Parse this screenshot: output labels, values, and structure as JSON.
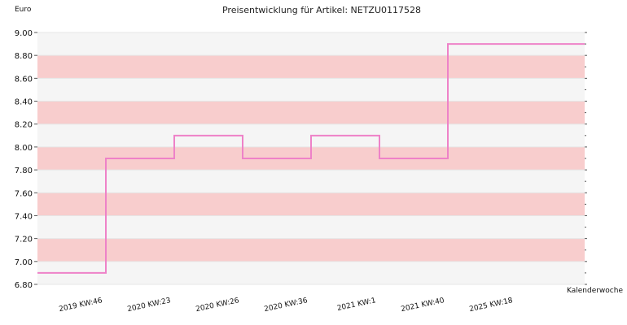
{
  "chart_data": {
    "type": "line",
    "title": "Preisentwicklung für Artikel: NETZU0117528",
    "xlabel": "Kalenderwoche",
    "ylabel": "Euro",
    "ylim": [
      6.8,
      9.0
    ],
    "yticks": [
      6.8,
      7.0,
      7.2,
      7.4,
      7.6,
      7.8,
      8.0,
      8.2,
      8.4,
      8.6,
      8.8,
      9.0
    ],
    "ytick_labels": [
      "6.80",
      "7.00",
      "7.20",
      "7.40",
      "7.60",
      "7.80",
      "8.00",
      "8.20",
      "8.40",
      "8.60",
      "8.80",
      "9.00"
    ],
    "categories": [
      "2019 KW:46",
      "2020 KW:23",
      "2020 KW:26",
      "2020 KW:36",
      "2021 KW:1",
      "2021 KW:40",
      "2025 KW:18"
    ],
    "series": [
      {
        "values": [
          6.9,
          7.9,
          8.1,
          7.9,
          8.1,
          7.9,
          8.9
        ],
        "color": "#ee82c8",
        "step": "post"
      }
    ],
    "band_colors": [
      "#f5f5f5",
      "#f8cdcd"
    ],
    "grid": true
  }
}
